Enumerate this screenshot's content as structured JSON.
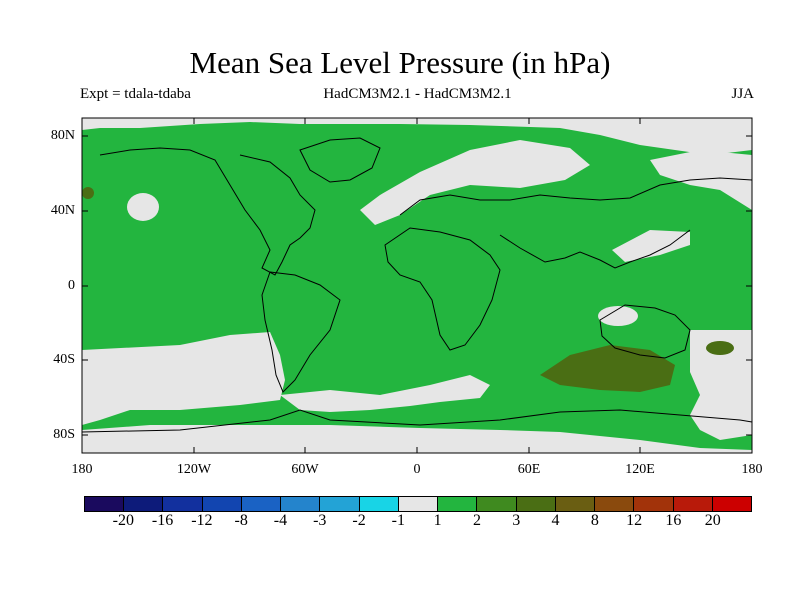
{
  "title": "Mean Sea Level Pressure (in hPa)",
  "subtitle_left": "Expt = tdala-tdaba",
  "subtitle_center": "HadCM3M2.1 - HadCM3M2.1",
  "subtitle_right": "JJA",
  "lat_labels": [
    "80N",
    "40N",
    "0",
    "40S",
    "80S"
  ],
  "lon_labels": [
    "180",
    "120W",
    "60W",
    "0",
    "60E",
    "120E",
    "180"
  ],
  "colorbar": {
    "colors": [
      "#1a0a5e",
      "#0d1b7a",
      "#12309e",
      "#1245b0",
      "#1a62c4",
      "#2484cc",
      "#23a3d6",
      "#18d4e6",
      "#e6e6e6",
      "#23b53f",
      "#3f8a1f",
      "#4a6e14",
      "#6a5e12",
      "#8a4a0d",
      "#a2330a",
      "#b81a0a",
      "#cc0000"
    ],
    "labels": [
      "-20",
      "-16",
      "-12",
      "-8",
      "-4",
      "-3",
      "-2",
      "-1",
      "1",
      "2",
      "3",
      "4",
      "8",
      "12",
      "16",
      "20"
    ]
  },
  "colors": {
    "green": "#23b53f",
    "neutral": "#e6e6e6",
    "darkgreen": "#4a6e14"
  }
}
